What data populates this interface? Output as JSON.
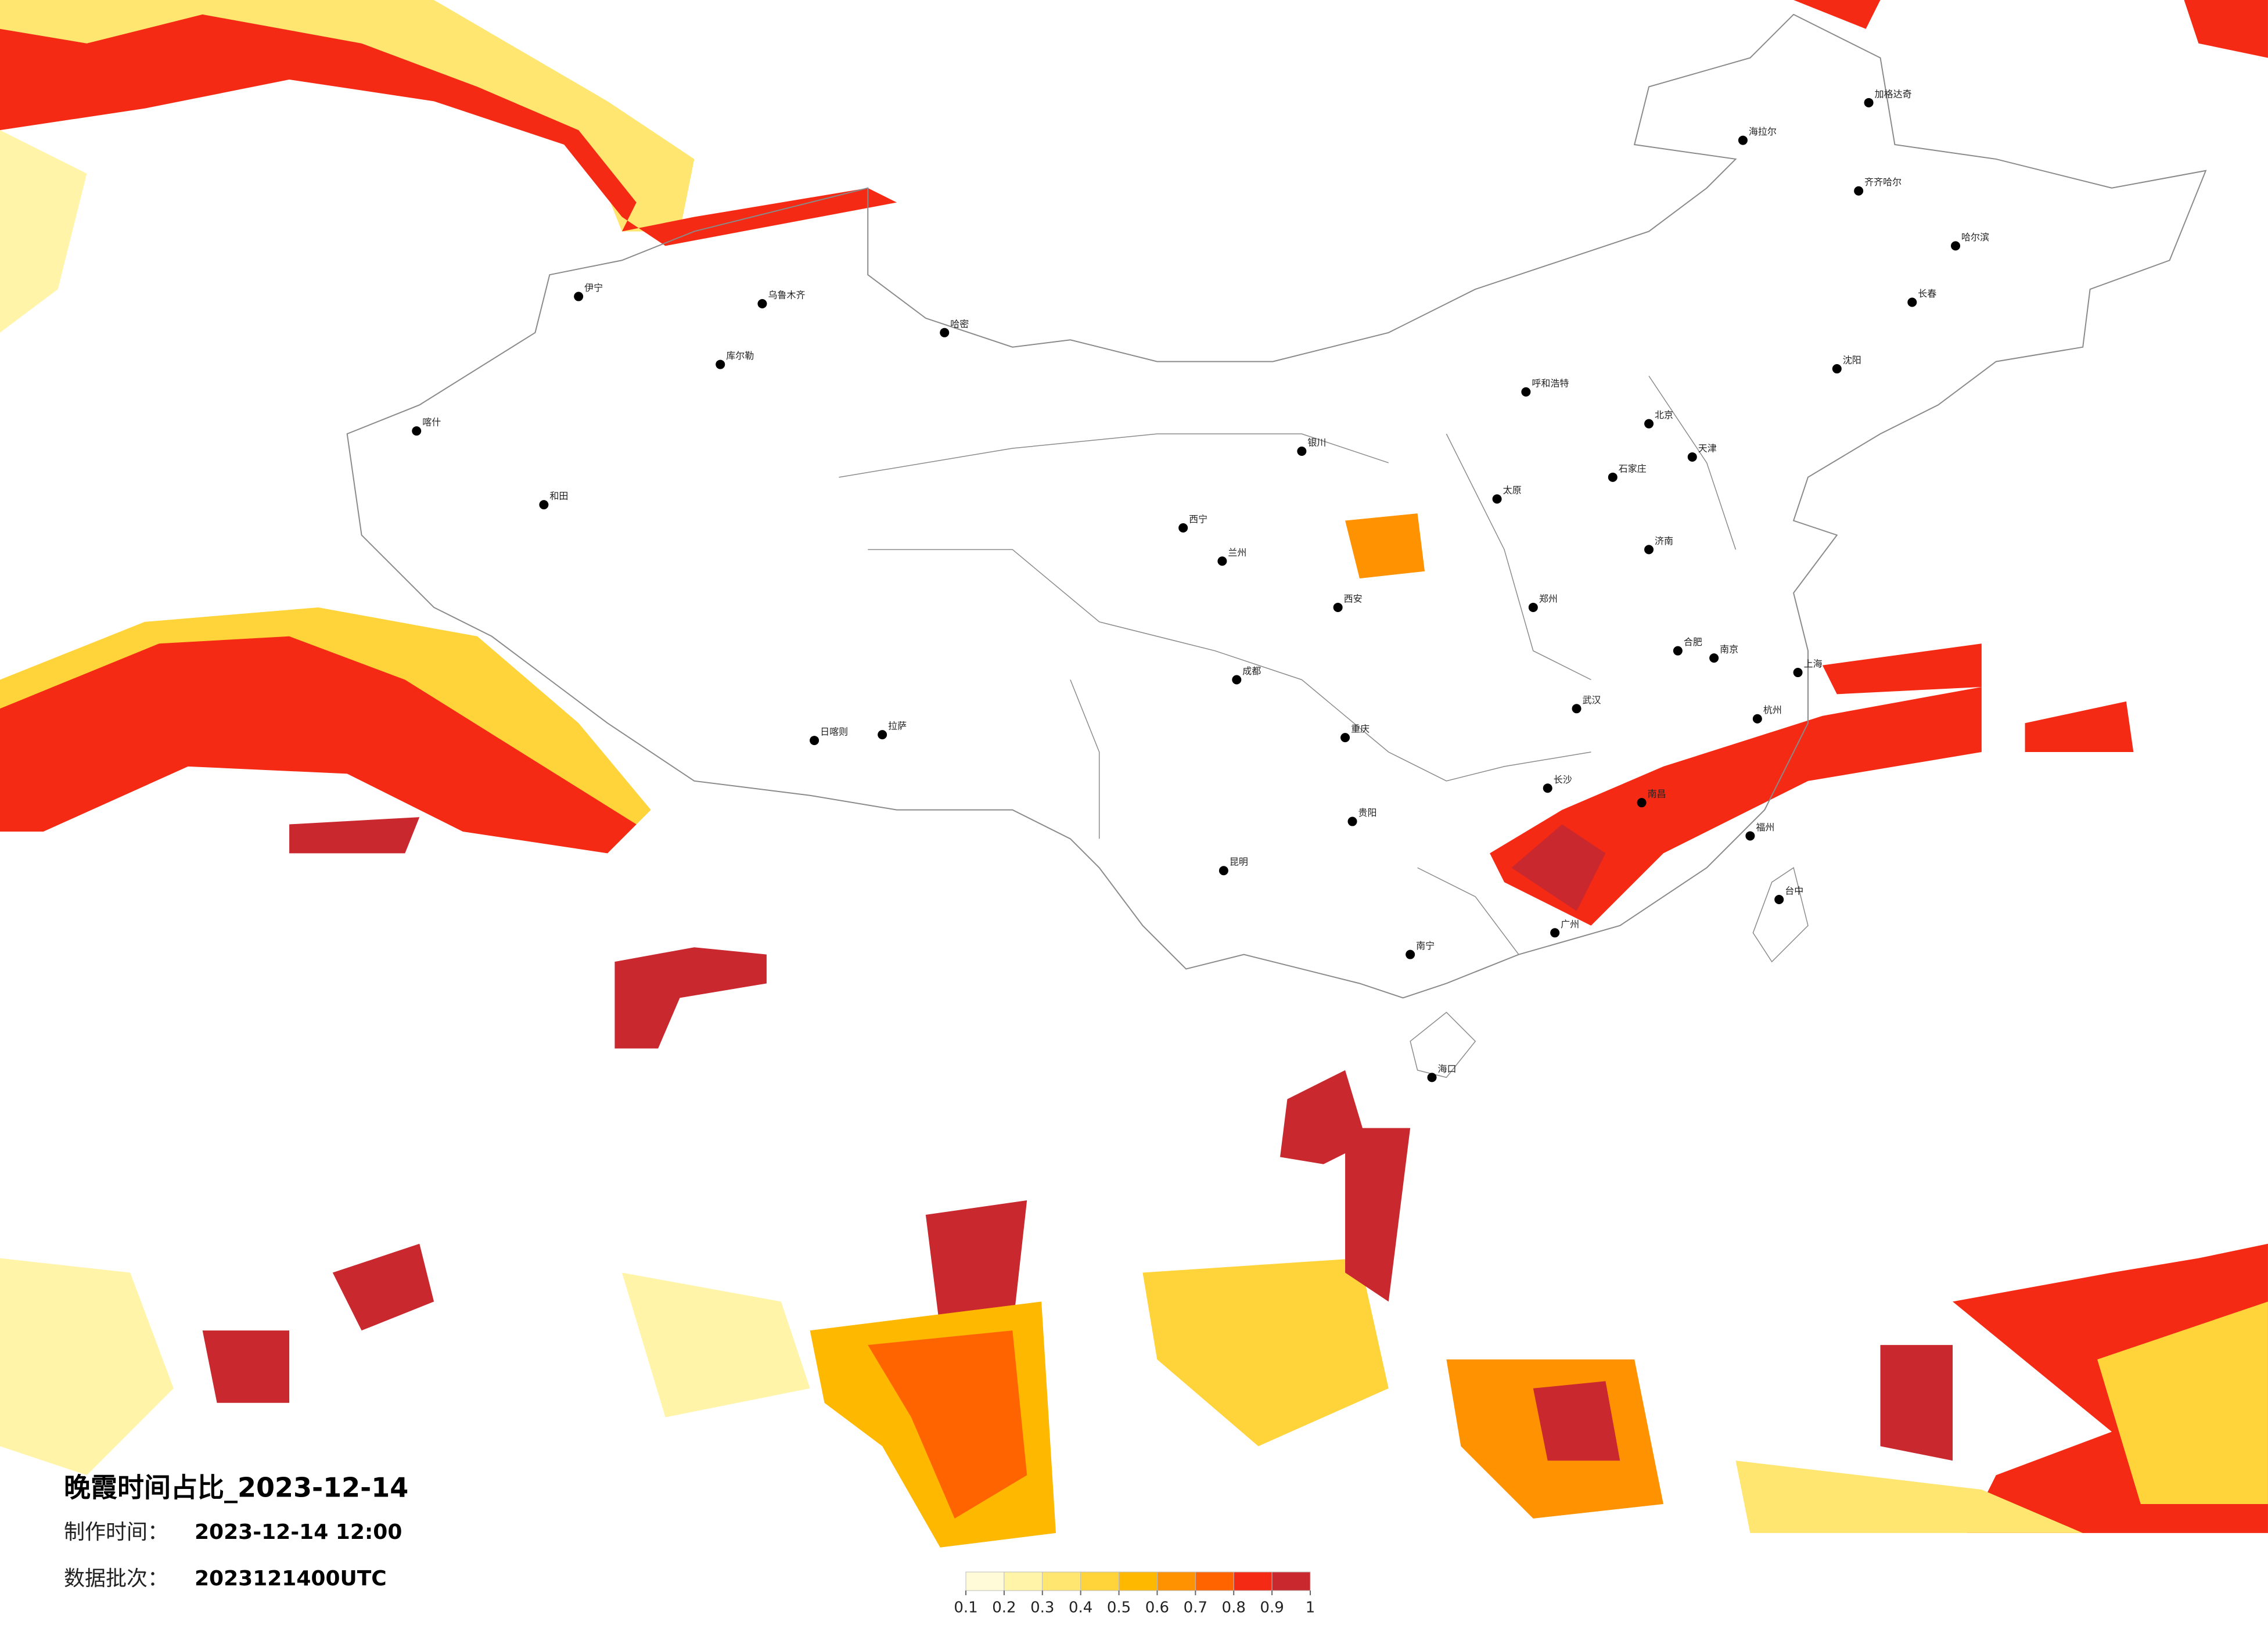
{
  "header": {
    "title": "晚霞时间占比_2023-12-14",
    "made_label": "制作时间：",
    "made_value": "2023-12-14 12:00",
    "batch_label": "数据批次：",
    "batch_value": "2023121400UTC"
  },
  "legend": {
    "ticks": [
      0.1,
      0.2,
      0.3,
      0.4,
      0.5,
      0.6,
      0.7,
      0.8,
      0.9,
      1
    ],
    "colors": [
      "#fffbd8",
      "#fff4a8",
      "#ffe670",
      "#ffd33a",
      "#ffb800",
      "#ff9200",
      "#ff6400",
      "#f52a14",
      "#c8282e"
    ]
  },
  "cities": [
    "海拉尔",
    "加格达奇",
    "齐齐哈尔",
    "哈尔滨",
    "长春",
    "沈阳",
    "北京",
    "天津",
    "石家庄",
    "太原",
    "呼和浩特",
    "银川",
    "兰州",
    "西宁",
    "西安",
    "郑州",
    "济南",
    "南京",
    "上海",
    "杭州",
    "合肥",
    "武汉",
    "长沙",
    "南昌",
    "福州",
    "广州",
    "南宁",
    "贵阳",
    "昆明",
    "成都",
    "重庆",
    "拉萨",
    "日喀则",
    "乌鲁木齐",
    "伊宁",
    "喀什",
    "和田",
    "库尔勒",
    "哈密",
    "台中",
    "海口"
  ]
}
